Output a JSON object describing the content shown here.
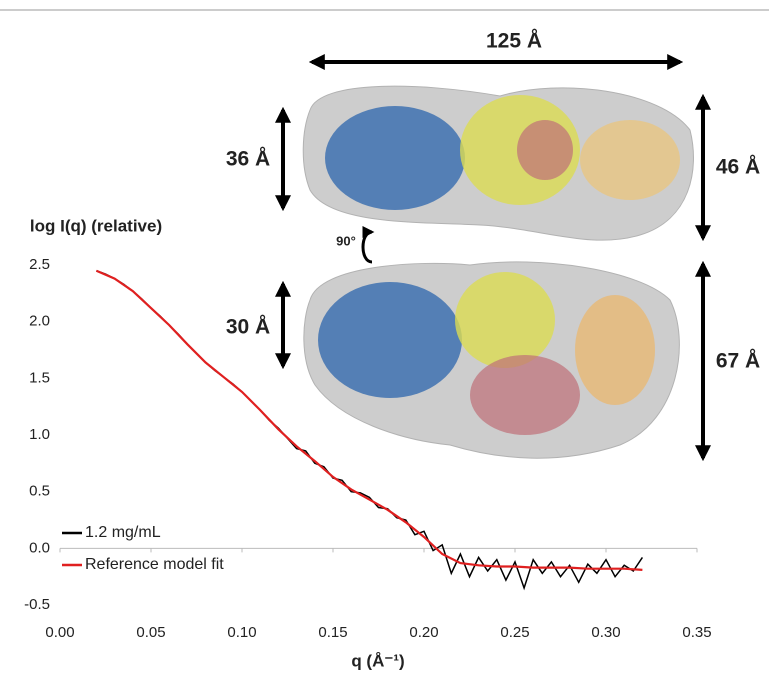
{
  "chart_data": {
    "type": "line",
    "y_label": "log I(q) (relative)",
    "x_label": "q (Å⁻¹)",
    "xlim": [
      0,
      0.35
    ],
    "xticks": [
      {
        "value": 0,
        "label": "0.00"
      },
      0.05,
      {
        "value": 0.1,
        "label": "0.10"
      },
      0.15,
      {
        "value": 0.2,
        "label": "0.20"
      },
      0.25,
      {
        "value": 0.3,
        "label": "0.30"
      },
      0.35
    ],
    "ylim": [
      -0.5,
      2.5
    ],
    "yticks": [
      -0.5,
      {
        "value": 0,
        "label": "0.0"
      },
      0.5,
      {
        "value": 1,
        "label": "1.0"
      },
      1.5,
      {
        "value": 2,
        "label": "2.0"
      },
      2.5
    ],
    "legend": "lower left",
    "series": [
      {
        "name": "1.2 mg/mL",
        "color": "#000000",
        "x": [
          0.02,
          0.025,
          0.03,
          0.035,
          0.04,
          0.045,
          0.05,
          0.055,
          0.06,
          0.065,
          0.07,
          0.075,
          0.08,
          0.085,
          0.09,
          0.095,
          0.1,
          0.105,
          0.11,
          0.115,
          0.12,
          0.125,
          0.13,
          0.135,
          0.14,
          0.145,
          0.15,
          0.155,
          0.16,
          0.165,
          0.17,
          0.175,
          0.18,
          0.185,
          0.19,
          0.195,
          0.2,
          0.205,
          0.21,
          0.215,
          0.22,
          0.225,
          0.23,
          0.235,
          0.24,
          0.245,
          0.25,
          0.255,
          0.26,
          0.265,
          0.27,
          0.275,
          0.28,
          0.285,
          0.29,
          0.295,
          0.3,
          0.305,
          0.31,
          0.315,
          0.32
        ],
        "values": [
          2.45,
          2.42,
          2.38,
          2.33,
          2.27,
          2.2,
          2.12,
          2.05,
          1.97,
          1.89,
          1.8,
          1.72,
          1.64,
          1.57,
          1.51,
          1.45,
          1.38,
          1.3,
          1.22,
          1.13,
          1.06,
          0.97,
          0.88,
          0.86,
          0.75,
          0.72,
          0.62,
          0.6,
          0.5,
          0.49,
          0.45,
          0.36,
          0.35,
          0.27,
          0.25,
          0.12,
          0.15,
          -0.02,
          0.03,
          -0.22,
          -0.05,
          -0.25,
          -0.08,
          -0.2,
          -0.1,
          -0.28,
          -0.12,
          -0.35,
          -0.1,
          -0.22,
          -0.12,
          -0.25,
          -0.15,
          -0.3,
          -0.14,
          -0.22,
          -0.1,
          -0.25,
          -0.15,
          -0.2,
          -0.08
        ]
      },
      {
        "name": "Reference model fit",
        "color": "#e02020",
        "x": [
          0.02,
          0.03,
          0.04,
          0.05,
          0.06,
          0.07,
          0.08,
          0.09,
          0.1,
          0.11,
          0.12,
          0.13,
          0.14,
          0.15,
          0.16,
          0.17,
          0.18,
          0.19,
          0.2,
          0.21,
          0.22,
          0.23,
          0.24,
          0.25,
          0.26,
          0.27,
          0.28,
          0.29,
          0.3,
          0.31,
          0.32
        ],
        "values": [
          2.45,
          2.38,
          2.27,
          2.12,
          1.97,
          1.8,
          1.64,
          1.51,
          1.38,
          1.22,
          1.05,
          0.9,
          0.77,
          0.63,
          0.52,
          0.43,
          0.34,
          0.23,
          0.1,
          -0.05,
          -0.13,
          -0.15,
          -0.16,
          -0.16,
          -0.17,
          -0.17,
          -0.17,
          -0.18,
          -0.18,
          -0.18,
          -0.19
        ]
      }
    ],
    "annotations": [
      "125 Å",
      "36 Å",
      "46 Å",
      "90°",
      "30 Å",
      "67 Å"
    ]
  }
}
